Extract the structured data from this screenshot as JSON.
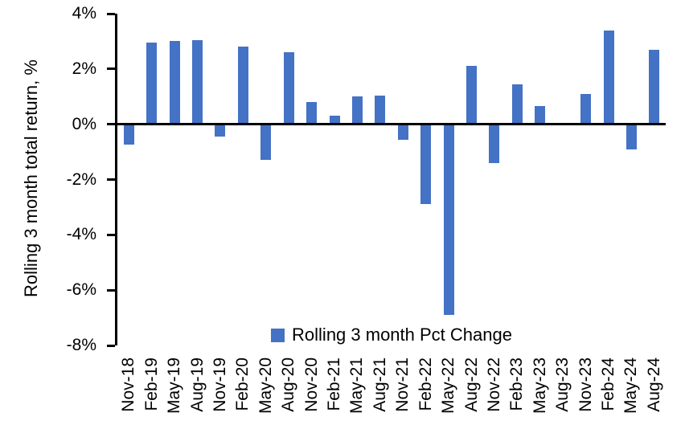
{
  "chart_data": {
    "type": "bar",
    "title": "",
    "xlabel": "",
    "ylabel": "Rolling 3 month total return, %",
    "ylim": [
      -8,
      4
    ],
    "grid": false,
    "legend_position": "bottom-center",
    "bar_color": "#4472C4",
    "axis_color": "#000000",
    "yticks": [
      {
        "value": 4,
        "label": "4%"
      },
      {
        "value": 2,
        "label": "2%"
      },
      {
        "value": 0,
        "label": "0%"
      },
      {
        "value": -2,
        "label": "-2%"
      },
      {
        "value": -4,
        "label": "-4%"
      },
      {
        "value": -6,
        "label": "-6%"
      },
      {
        "value": -8,
        "label": "-8%"
      }
    ],
    "categories": [
      "Nov-18",
      "Feb-19",
      "May-19",
      "Aug-19",
      "Nov-19",
      "Feb-20",
      "May-20",
      "Aug-20",
      "Nov-20",
      "Feb-21",
      "May-21",
      "Aug-21",
      "Nov-21",
      "Feb-22",
      "May-22",
      "Aug-22",
      "Nov-22",
      "Feb-23",
      "May-23",
      "Aug-23",
      "Nov-23",
      "Feb-24",
      "May-24",
      "Aug-24"
    ],
    "series": [
      {
        "name": "Rolling 3 month Pct Change",
        "values": [
          -0.75,
          2.95,
          3.0,
          3.05,
          -0.45,
          2.8,
          -1.3,
          2.6,
          0.8,
          0.3,
          1.0,
          1.05,
          -0.55,
          -2.9,
          -6.9,
          2.1,
          -1.4,
          1.45,
          0.65,
          0,
          1.1,
          3.4,
          -0.9,
          2.7
        ]
      }
    ]
  }
}
